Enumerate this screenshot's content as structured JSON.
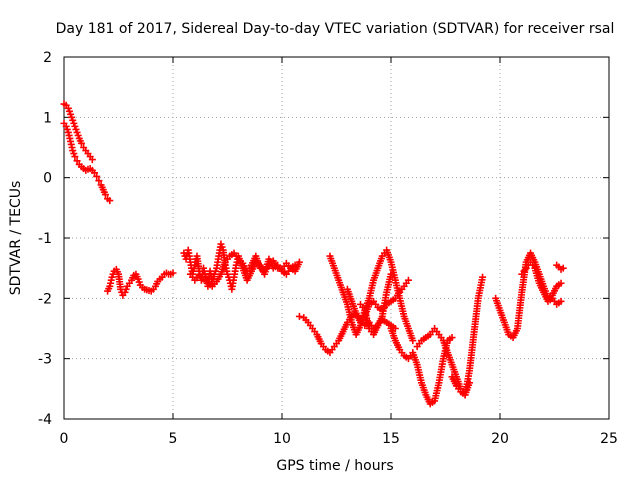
{
  "chart_data": {
    "type": "scatter",
    "title": "Day 181 of 2017, Sidereal Day-to-day VTEC variation (SDTVAR) for receiver rsal",
    "xlabel": "GPS time / hours",
    "ylabel": "SDTVAR / TECUs",
    "xlim": [
      0,
      25
    ],
    "ylim": [
      -4,
      2
    ],
    "xticks": [
      "0",
      "5",
      "10",
      "15",
      "20",
      "25"
    ],
    "yticks": [
      "2",
      "1",
      "0",
      "-1",
      "-2",
      "-3",
      "-4"
    ],
    "grid": true,
    "marker": "+",
    "color": "#ff0000",
    "segments": [
      {
        "x": [
          0.0,
          0.1,
          0.2,
          0.3,
          0.4,
          0.5,
          0.6,
          0.7,
          0.8,
          0.9,
          1.0,
          1.1,
          1.2,
          1.3
        ],
        "y": [
          1.22,
          1.2,
          1.15,
          1.05,
          0.95,
          0.85,
          0.75,
          0.65,
          0.57,
          0.5,
          0.45,
          0.4,
          0.35,
          0.3
        ]
      },
      {
        "x": [
          0.0,
          0.1,
          0.2,
          0.3,
          0.4,
          0.5,
          0.6,
          0.7,
          0.8,
          0.9,
          1.0,
          1.1,
          1.2,
          1.3,
          1.4,
          1.5,
          1.6,
          1.7,
          1.8,
          1.9,
          2.0,
          2.1
        ],
        "y": [
          0.9,
          0.85,
          0.75,
          0.6,
          0.45,
          0.35,
          0.28,
          0.22,
          0.18,
          0.15,
          0.12,
          0.14,
          0.15,
          0.12,
          0.08,
          0.02,
          -0.05,
          -0.12,
          -0.2,
          -0.28,
          -0.35,
          -0.38
        ]
      },
      {
        "x": [
          2.0,
          2.1,
          2.2,
          2.3,
          2.4,
          2.5,
          2.6,
          2.7,
          2.8,
          2.9,
          3.0,
          3.1,
          3.2,
          3.3,
          3.4,
          3.5,
          3.6,
          3.7,
          3.8,
          3.9,
          4.0,
          4.1,
          4.2,
          4.3,
          4.4,
          4.5,
          4.6,
          4.7,
          4.8,
          4.9,
          5.0
        ],
        "y": [
          -1.88,
          -1.8,
          -1.65,
          -1.55,
          -1.52,
          -1.6,
          -1.85,
          -1.95,
          -1.9,
          -1.8,
          -1.75,
          -1.7,
          -1.62,
          -1.6,
          -1.68,
          -1.78,
          -1.82,
          -1.85,
          -1.86,
          -1.87,
          -1.88,
          -1.85,
          -1.8,
          -1.72,
          -1.68,
          -1.65,
          -1.6,
          -1.58,
          -1.6,
          -1.6,
          -1.58
        ]
      },
      {
        "x": [
          5.5,
          5.6,
          5.7,
          5.8,
          5.9,
          6.0,
          6.1,
          6.2,
          6.3,
          6.4,
          6.5,
          6.6,
          6.7,
          6.8,
          6.9,
          7.0,
          7.1,
          7.2,
          7.3,
          7.4,
          7.5,
          7.6,
          7.7,
          7.8,
          7.9,
          8.0,
          8.2,
          8.4,
          8.6,
          8.8,
          9.0,
          9.2,
          9.4,
          9.6,
          9.8,
          10.0,
          10.2,
          10.4,
          10.6,
          10.8
        ],
        "y": [
          -1.25,
          -1.35,
          -1.2,
          -1.4,
          -1.6,
          -1.45,
          -1.3,
          -1.55,
          -1.7,
          -1.5,
          -1.65,
          -1.8,
          -1.55,
          -1.72,
          -1.6,
          -1.5,
          -1.3,
          -1.1,
          -1.2,
          -1.45,
          -1.6,
          -1.7,
          -1.85,
          -1.65,
          -1.45,
          -1.3,
          -1.5,
          -1.7,
          -1.55,
          -1.4,
          -1.45,
          -1.6,
          -1.35,
          -1.5,
          -1.45,
          -1.55,
          -1.6,
          -1.5,
          -1.55,
          -1.4
        ]
      },
      {
        "x": [
          5.8,
          6.0,
          6.2,
          6.4,
          6.6,
          6.8,
          7.0,
          7.2,
          7.4,
          7.6,
          7.8,
          8.0,
          8.2,
          8.4,
          8.6,
          8.8,
          9.0,
          9.2,
          9.4,
          9.6,
          9.8,
          10.0,
          10.2,
          10.4,
          10.6
        ],
        "y": [
          -1.6,
          -1.7,
          -1.62,
          -1.68,
          -1.75,
          -1.8,
          -1.72,
          -1.6,
          -1.4,
          -1.3,
          -1.25,
          -1.35,
          -1.42,
          -1.55,
          -1.45,
          -1.3,
          -1.5,
          -1.55,
          -1.45,
          -1.38,
          -1.5,
          -1.52,
          -1.42,
          -1.5,
          -1.45
        ]
      },
      {
        "x": [
          10.8,
          11.0,
          11.2,
          11.4,
          11.6,
          11.8,
          12.0,
          12.2,
          12.4,
          12.6,
          12.8,
          13.0,
          13.2,
          13.4,
          13.6,
          13.8,
          14.0,
          14.2,
          14.4,
          14.6,
          14.8,
          15.0,
          15.2
        ],
        "y": [
          -2.3,
          -2.32,
          -2.4,
          -2.5,
          -2.6,
          -2.75,
          -2.85,
          -2.9,
          -2.8,
          -2.7,
          -2.55,
          -2.4,
          -2.3,
          -2.25,
          -2.35,
          -2.45,
          -2.4,
          -2.5,
          -2.45,
          -2.35,
          -2.4,
          -2.45,
          -2.5
        ]
      },
      {
        "x": [
          12.2,
          12.4,
          12.6,
          12.8,
          13.0,
          13.2,
          13.4,
          13.6,
          13.8,
          14.0,
          14.2,
          14.4,
          14.6,
          14.8,
          15.0,
          15.2,
          15.4,
          15.6,
          15.8,
          16.0
        ],
        "y": [
          -1.3,
          -1.5,
          -1.7,
          -1.9,
          -2.1,
          -2.4,
          -2.6,
          -2.45,
          -2.2,
          -2.0,
          -1.7,
          -1.5,
          -1.3,
          -1.2,
          -1.4,
          -1.7,
          -2.0,
          -2.3,
          -2.5,
          -2.7
        ]
      },
      {
        "x": [
          13.0,
          13.2,
          13.4,
          13.6,
          13.8,
          14.0,
          14.2,
          14.4,
          14.6,
          14.8,
          15.0,
          15.2,
          15.4,
          15.6,
          15.8
        ],
        "y": [
          -1.85,
          -2.05,
          -2.25,
          -2.4,
          -2.3,
          -2.1,
          -2.05,
          -2.15,
          -2.2,
          -2.1,
          -2.05,
          -2.0,
          -1.9,
          -1.8,
          -1.7
        ]
      },
      {
        "x": [
          13.6,
          13.8,
          14.0,
          14.2,
          14.4,
          14.6,
          14.8,
          15.0
        ],
        "y": [
          -2.1,
          -2.2,
          -2.5,
          -2.6,
          -2.45,
          -2.3,
          -1.9,
          -1.6
        ]
      },
      {
        "x": [
          15.0,
          15.2,
          15.4,
          15.6,
          15.8,
          16.0,
          16.2,
          16.4,
          16.6,
          16.8,
          17.0,
          17.2,
          17.4,
          17.6,
          17.8
        ],
        "y": [
          -2.5,
          -2.7,
          -2.85,
          -2.95,
          -3.0,
          -2.9,
          -3.1,
          -3.4,
          -3.6,
          -3.75,
          -3.7,
          -3.4,
          -3.0,
          -2.7,
          -2.65
        ]
      },
      {
        "x": [
          16.2,
          16.4,
          16.6,
          16.8,
          17.0,
          17.2,
          17.4,
          17.6,
          17.8,
          18.0,
          18.2,
          18.4,
          18.6,
          18.8,
          19.0,
          19.2
        ],
        "y": [
          -2.8,
          -2.7,
          -2.65,
          -2.6,
          -2.5,
          -2.6,
          -2.7,
          -2.9,
          -3.1,
          -3.3,
          -3.5,
          -3.6,
          -3.2,
          -2.6,
          -2.0,
          -1.65
        ]
      },
      {
        "x": [
          17.8,
          18.0,
          18.2,
          18.4,
          18.6
        ],
        "y": [
          -3.3,
          -3.45,
          -3.55,
          -3.6,
          -3.4
        ]
      },
      {
        "x": [
          19.8,
          20.0,
          20.2,
          20.4,
          20.6,
          20.8,
          21.0,
          21.2,
          21.4,
          21.6,
          21.8,
          22.0,
          22.2,
          22.4,
          22.6,
          22.8
        ],
        "y": [
          -2.0,
          -2.2,
          -2.4,
          -2.6,
          -2.65,
          -2.5,
          -1.9,
          -1.4,
          -1.25,
          -1.4,
          -1.6,
          -1.8,
          -2.0,
          -1.95,
          -1.8,
          -1.75
        ]
      },
      {
        "x": [
          21.0,
          21.2,
          21.4,
          21.6,
          21.8,
          22.0,
          22.2,
          22.4,
          22.6,
          22.8
        ],
        "y": [
          -1.6,
          -1.5,
          -1.4,
          -1.5,
          -1.75,
          -1.9,
          -2.05,
          -2.0,
          -2.1,
          -2.05
        ]
      },
      {
        "x": [
          22.6,
          22.7,
          22.8,
          22.9
        ],
        "y": [
          -1.45,
          -1.48,
          -1.52,
          -1.5
        ]
      }
    ]
  }
}
